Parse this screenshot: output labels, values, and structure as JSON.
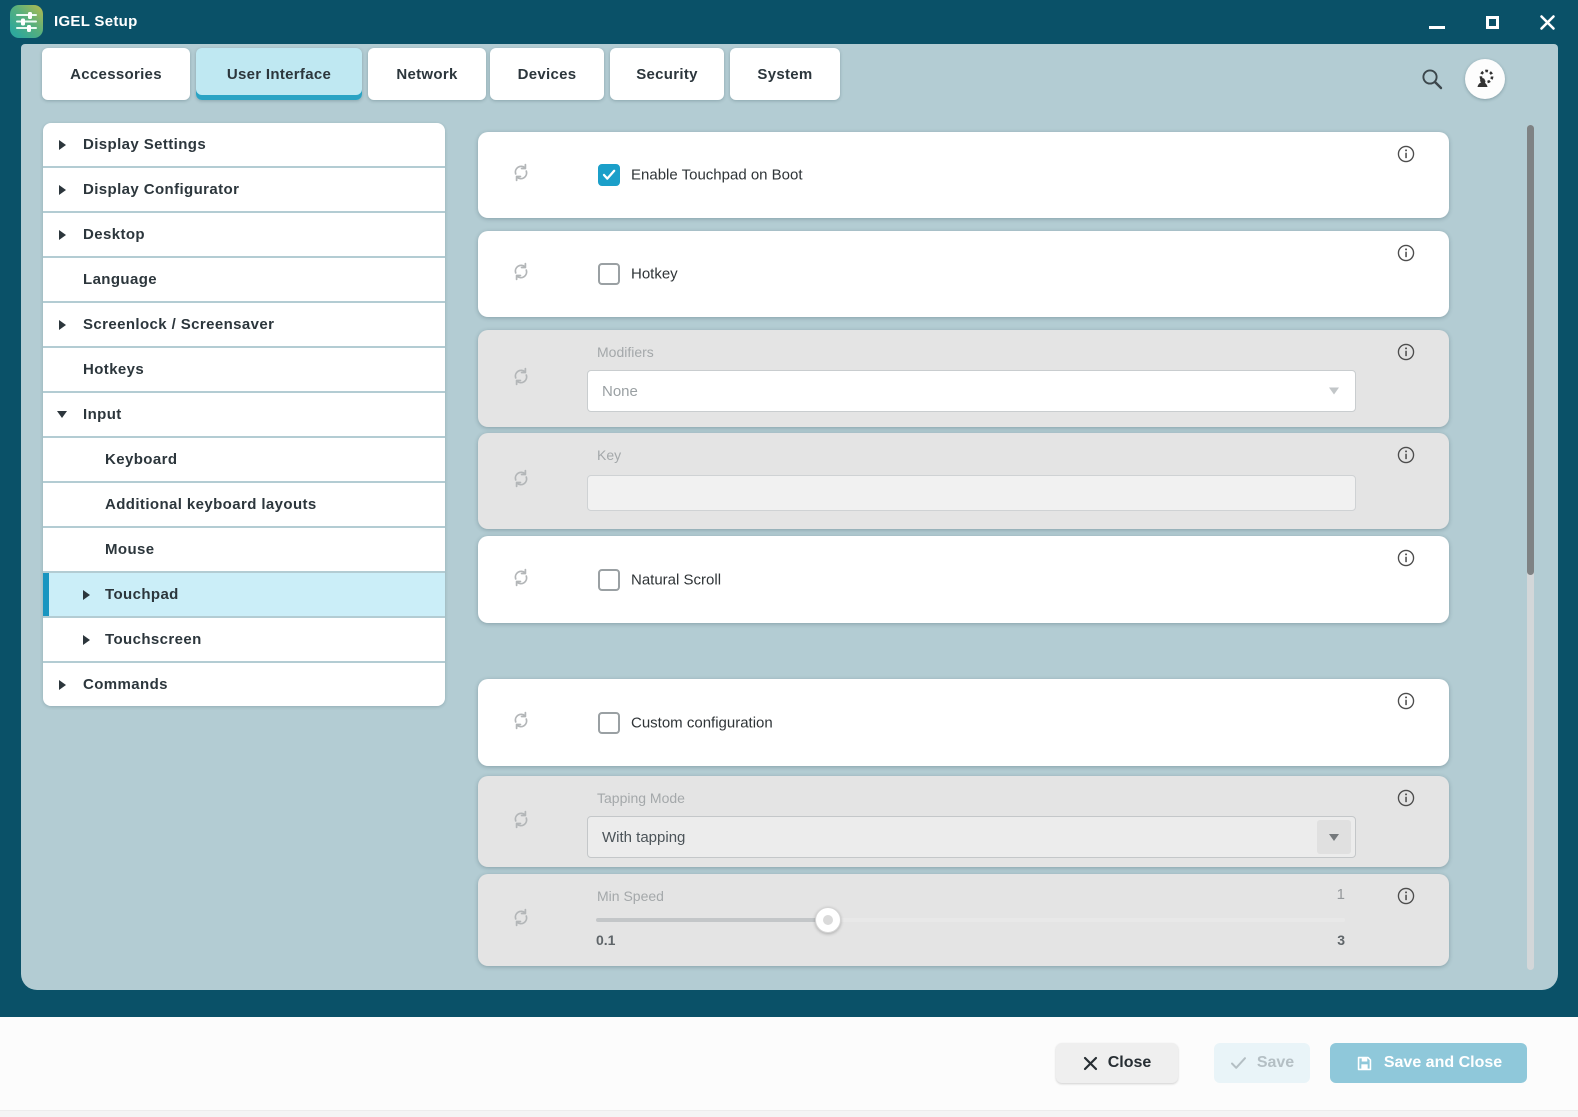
{
  "titlebar": {
    "title": "IGEL Setup",
    "app_icon": "sliders-logo",
    "window_icons": [
      "minimize",
      "maximize",
      "close"
    ]
  },
  "tabs": [
    {
      "label": "Accessories",
      "selected": false
    },
    {
      "label": "User Interface",
      "selected": true
    },
    {
      "label": "Network",
      "selected": false
    },
    {
      "label": "Devices",
      "selected": false
    },
    {
      "label": "Security",
      "selected": false
    },
    {
      "label": "System",
      "selected": false
    }
  ],
  "toolbar": {
    "search_icon": "magnifier",
    "assistant_icon": "gear-person"
  },
  "sidebar": {
    "items": [
      {
        "label": "Display Settings",
        "level": 0,
        "arrow": "right",
        "selected": false
      },
      {
        "label": "Display Configurator",
        "level": 0,
        "arrow": "right",
        "selected": false
      },
      {
        "label": "Desktop",
        "level": 0,
        "arrow": "right",
        "selected": false
      },
      {
        "label": "Language",
        "level": 0,
        "arrow": null,
        "selected": false
      },
      {
        "label": "Screenlock / Screensaver",
        "level": 0,
        "arrow": "right",
        "selected": false
      },
      {
        "label": "Hotkeys",
        "level": 0,
        "arrow": null,
        "selected": false
      },
      {
        "label": "Input",
        "level": 0,
        "arrow": "down",
        "selected": false
      },
      {
        "label": "Keyboard",
        "level": 1,
        "arrow": null,
        "selected": false
      },
      {
        "label": "Additional keyboard layouts",
        "level": 1,
        "arrow": null,
        "selected": false
      },
      {
        "label": "Mouse",
        "level": 1,
        "arrow": null,
        "selected": false
      },
      {
        "label": "Touchpad",
        "level": 1,
        "arrow": "right",
        "selected": true
      },
      {
        "label": "Touchscreen",
        "level": 1,
        "arrow": "right",
        "selected": false
      },
      {
        "label": "Commands",
        "level": 0,
        "arrow": "right",
        "selected": false
      }
    ]
  },
  "settings": {
    "cards": [
      {
        "type": "checkbox",
        "label": "Enable Touchpad on Boot",
        "checked": true,
        "disabled": false
      },
      {
        "type": "checkbox",
        "label": "Hotkey",
        "checked": false,
        "disabled": false
      },
      {
        "type": "select",
        "label": "Modifiers",
        "value": "None",
        "disabled": true,
        "muted_value": true
      },
      {
        "type": "input",
        "label": "Key",
        "value": "",
        "disabled": true
      },
      {
        "type": "checkbox",
        "label": "Natural Scroll",
        "checked": false,
        "disabled": false
      },
      {
        "type": "checkbox",
        "label": "Custom configuration",
        "checked": false,
        "disabled": false
      },
      {
        "type": "select",
        "label": "Tapping Mode",
        "value": "With tapping",
        "disabled": true,
        "muted_value": false
      },
      {
        "type": "slider",
        "label": "Min Speed",
        "value": "1",
        "min": "0.1",
        "max": "3",
        "percent": 31,
        "disabled": true
      }
    ]
  },
  "footer": {
    "close_label": "Close",
    "save_label": "Save",
    "save_and_close_label": "Save and Close"
  },
  "colors": {
    "frame_teal": "#0a5168",
    "panel_bg": "#b3ccd3",
    "accent_blue": "#1b9fc9",
    "selected_tab_bg": "#bfe8f2",
    "selected_nav_bg": "#cbeef8",
    "disabled_card_bg": "#e4e4e4",
    "save_close_btn": "#8fc8da"
  }
}
